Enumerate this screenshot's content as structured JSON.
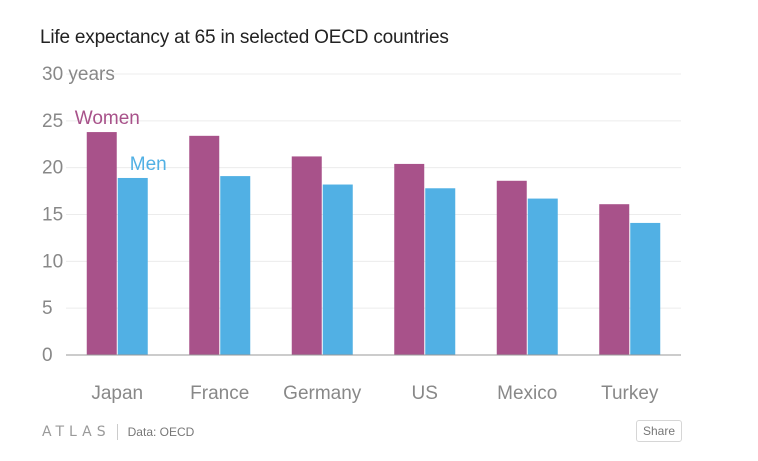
{
  "title": "Life expectancy at 65 in selected OECD countries",
  "footer": {
    "logo": "ATLAS",
    "source": "Data: OECD",
    "share_label": "Share"
  },
  "colors": {
    "women": "#a8528a",
    "men": "#51b0e4",
    "grid": "#ececec",
    "axis": "#999999",
    "tick_text": "#888888"
  },
  "chart_data": {
    "type": "bar",
    "title": "Life expectancy at 65 in selected OECD countries",
    "categories": [
      "Japan",
      "France",
      "Germany",
      "US",
      "Mexico",
      "Turkey"
    ],
    "series": [
      {
        "name": "Women",
        "values": [
          23.8,
          23.4,
          21.2,
          20.4,
          18.6,
          16.1
        ]
      },
      {
        "name": "Men",
        "values": [
          18.9,
          19.1,
          18.2,
          17.8,
          16.7,
          14.1
        ]
      }
    ],
    "y_ticks": [
      "0",
      "5",
      "10",
      "15",
      "20",
      "25",
      "30 years"
    ],
    "ylim": [
      0,
      30
    ],
    "grid": true,
    "legend": "inline labels above first group"
  }
}
